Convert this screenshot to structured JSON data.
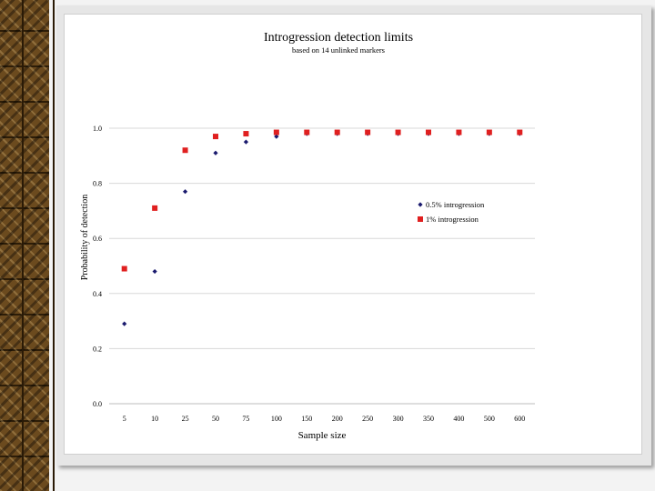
{
  "chart_data": {
    "type": "scatter",
    "title": "Introgression detection limits",
    "subtitle": "based on 14 unlinked markers",
    "xlabel": "Sample size",
    "ylabel": "Probability of detection",
    "categories": [
      "5",
      "10",
      "25",
      "50",
      "75",
      "100",
      "150",
      "200",
      "250",
      "300",
      "350",
      "400",
      "500",
      "600"
    ],
    "ylim": [
      0,
      1.0
    ],
    "yticks": [
      "0.0",
      "0.2",
      "0.4",
      "0.6",
      "0.8",
      "1.0"
    ],
    "grid": true,
    "legend_position": "right",
    "series": [
      {
        "name": "0.5% introgression",
        "marker": "diamond",
        "color": "#1a1a6e",
        "values": [
          0.29,
          0.48,
          0.77,
          0.91,
          0.95,
          0.97,
          0.98,
          0.98,
          0.98,
          0.98,
          0.98,
          0.98,
          0.98,
          0.98
        ]
      },
      {
        "name": "1% introgression",
        "marker": "square",
        "color": "#e02020",
        "values": [
          0.49,
          0.71,
          0.92,
          0.97,
          0.98,
          0.985,
          0.985,
          0.985,
          0.985,
          0.985,
          0.985,
          0.985,
          0.985,
          0.985
        ]
      }
    ]
  }
}
